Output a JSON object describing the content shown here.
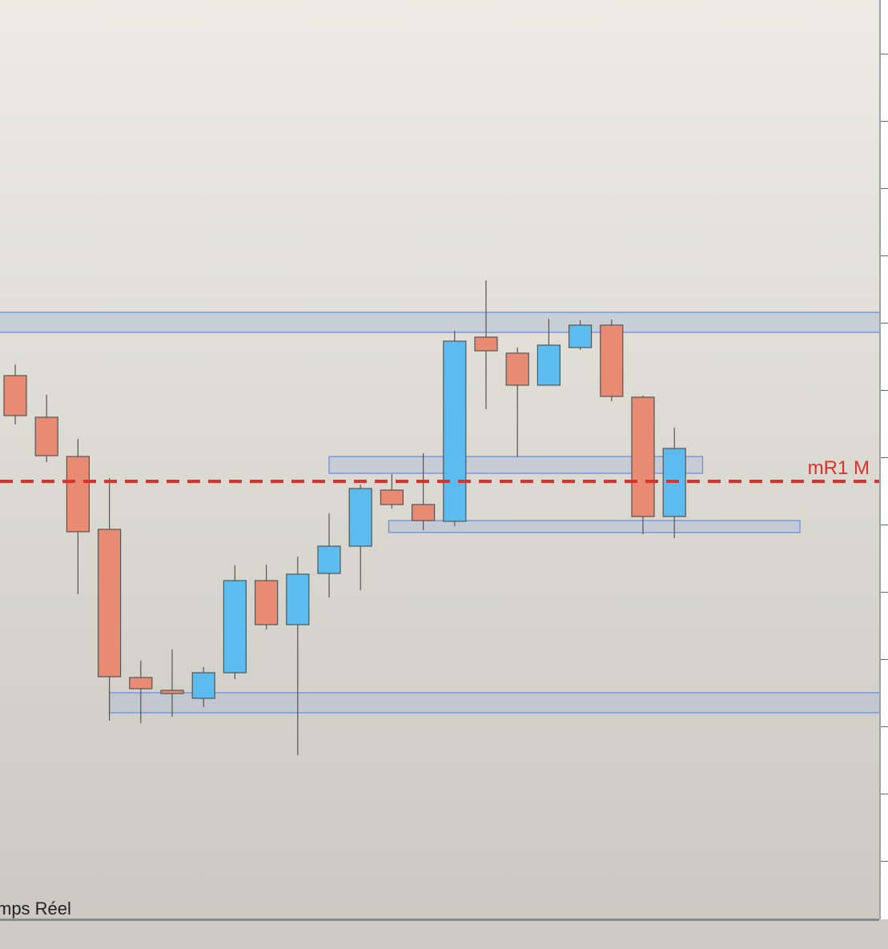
{
  "status_text": "mps Réel",
  "colors": {
    "bearish": "#e98a73",
    "bullish": "#5cbcf0",
    "zone_fill": "#b4bfd6",
    "zone_border": "#6b8fe6",
    "pivot_line": "#e0302a",
    "outline": "#555555"
  },
  "chart_data": {
    "type": "candlestick",
    "title": "",
    "xlabel": "",
    "ylabel": "",
    "grid": false,
    "candles": [
      {
        "o": 68.1,
        "h": 69.5,
        "l": 62.0,
        "c": 63.1
      },
      {
        "o": 62.9,
        "h": 65.7,
        "l": 57.3,
        "c": 58.1
      },
      {
        "o": 58.0,
        "h": 60.2,
        "l": 40.8,
        "c": 48.6
      },
      {
        "o": 48.9,
        "h": 55.3,
        "l": 25.0,
        "c": 30.5
      },
      {
        "o": 30.4,
        "h": 32.5,
        "l": 24.7,
        "c": 29.0
      },
      {
        "o": 28.8,
        "h": 33.9,
        "l": 25.5,
        "c": 28.4
      },
      {
        "o": 27.8,
        "h": 31.7,
        "l": 26.7,
        "c": 31.0
      },
      {
        "o": 31.0,
        "h": 44.4,
        "l": 30.2,
        "c": 42.5
      },
      {
        "o": 42.5,
        "h": 44.5,
        "l": 36.4,
        "c": 37.0
      },
      {
        "o": 37.0,
        "h": 45.5,
        "l": 20.7,
        "c": 43.3
      },
      {
        "o": 43.4,
        "h": 50.9,
        "l": 40.4,
        "c": 46.8
      },
      {
        "o": 46.8,
        "h": 54.5,
        "l": 41.3,
        "c": 54.0
      },
      {
        "o": 53.8,
        "h": 55.8,
        "l": 51.5,
        "c": 52.0
      },
      {
        "o": 52.0,
        "h": 58.4,
        "l": 48.8,
        "c": 50.0
      },
      {
        "o": 49.9,
        "h": 73.7,
        "l": 49.3,
        "c": 72.4
      },
      {
        "o": 72.9,
        "h": 80.0,
        "l": 63.9,
        "c": 71.2
      },
      {
        "o": 70.9,
        "h": 71.6,
        "l": 57.9,
        "c": 66.9
      },
      {
        "o": 66.9,
        "h": 75.2,
        "l": 66.9,
        "c": 71.9
      },
      {
        "o": 71.6,
        "h": 75.0,
        "l": 71.3,
        "c": 74.4
      },
      {
        "o": 74.4,
        "h": 75.1,
        "l": 64.9,
        "c": 65.5
      },
      {
        "o": 65.4,
        "h": 65.6,
        "l": 48.3,
        "c": 50.5
      },
      {
        "o": 50.5,
        "h": 61.6,
        "l": 47.8,
        "c": 59.0
      }
    ],
    "zones": [
      {
        "low": 73.5,
        "high": 76.0,
        "from": -1,
        "to": null
      },
      {
        "low": 55.9,
        "high": 58.0,
        "from": 10,
        "to": 21.9
      },
      {
        "low": 48.5,
        "high": 50.0,
        "from": 11.9,
        "to": 25.0
      },
      {
        "low": 26.0,
        "high": 28.5,
        "from": 3.0,
        "to": null
      }
    ],
    "pivot": {
      "label": "mR1 M",
      "value": 54.9
    },
    "axis_ticks_count": 13
  }
}
